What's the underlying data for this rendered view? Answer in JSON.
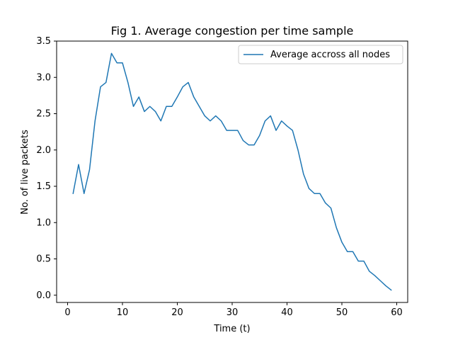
{
  "chart_data": {
    "type": "line",
    "title": "Fig 1. Average congestion per time sample",
    "xlabel": "Time (t)",
    "ylabel": "No. of live packets",
    "xlim": [
      -2,
      62
    ],
    "ylim": [
      -0.1,
      3.5
    ],
    "xticks": [
      0,
      10,
      20,
      30,
      40,
      50,
      60
    ],
    "yticks": [
      0.0,
      0.5,
      1.0,
      1.5,
      2.0,
      2.5,
      3.0,
      3.5
    ],
    "xtick_labels": [
      "0",
      "10",
      "20",
      "30",
      "40",
      "50",
      "60"
    ],
    "ytick_labels": [
      "0.0",
      "0.5",
      "1.0",
      "1.5",
      "2.0",
      "2.5",
      "3.0",
      "3.5"
    ],
    "grid": false,
    "legend_position": "upper right",
    "series": [
      {
        "name": "Average accross all nodes",
        "color": "#1f77b4",
        "x": [
          1,
          2,
          3,
          4,
          5,
          6,
          7,
          8,
          9,
          10,
          11,
          12,
          13,
          14,
          15,
          16,
          17,
          18,
          19,
          20,
          21,
          22,
          23,
          24,
          25,
          26,
          27,
          28,
          29,
          30,
          31,
          32,
          33,
          34,
          35,
          36,
          37,
          38,
          39,
          40,
          41,
          42,
          43,
          44,
          45,
          46,
          47,
          48,
          49,
          50,
          51,
          52,
          53,
          54,
          55,
          56,
          57,
          58,
          59
        ],
        "y": [
          1.4,
          1.8,
          1.4,
          1.73,
          2.4,
          2.87,
          2.93,
          3.33,
          3.2,
          3.2,
          2.93,
          2.6,
          2.73,
          2.53,
          2.6,
          2.53,
          2.4,
          2.6,
          2.6,
          2.73,
          2.87,
          2.93,
          2.73,
          2.6,
          2.47,
          2.4,
          2.47,
          2.4,
          2.27,
          2.27,
          2.27,
          2.13,
          2.07,
          2.07,
          2.2,
          2.4,
          2.47,
          2.27,
          2.4,
          2.33,
          2.27,
          2.0,
          1.67,
          1.47,
          1.4,
          1.4,
          1.27,
          1.2,
          0.93,
          0.73,
          0.6,
          0.6,
          0.47,
          0.47,
          0.33,
          0.27,
          0.2,
          0.13,
          0.07
        ]
      }
    ]
  }
}
